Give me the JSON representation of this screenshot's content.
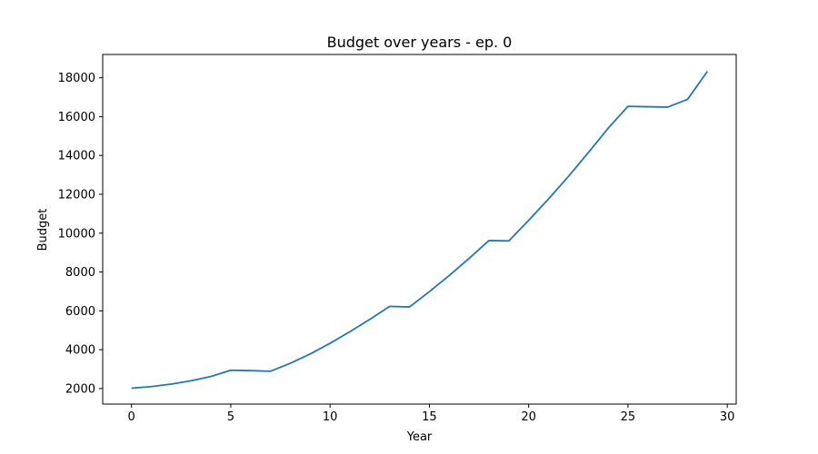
{
  "chart_data": {
    "type": "line",
    "title": "Budget over years - ep. 0",
    "xlabel": "Year",
    "ylabel": "Budget",
    "xlim": [
      -1.45,
      30.45
    ],
    "ylim": [
      1200,
      19200
    ],
    "xticks": [
      0,
      5,
      10,
      15,
      20,
      25,
      30
    ],
    "yticks": [
      2000,
      4000,
      6000,
      8000,
      10000,
      12000,
      14000,
      16000,
      18000
    ],
    "grid": false,
    "legend": "none",
    "series": [
      {
        "color": "#1f77b4",
        "x": [
          0,
          1,
          2,
          3,
          4,
          5,
          6,
          7,
          8,
          9,
          10,
          11,
          12,
          13,
          14,
          15,
          16,
          17,
          18,
          19,
          20,
          21,
          22,
          23,
          24,
          25,
          26,
          27,
          28,
          29
        ],
        "y": [
          2020,
          2100,
          2230,
          2400,
          2620,
          2940,
          2920,
          2890,
          3300,
          3780,
          4330,
          4930,
          5560,
          6230,
          6200,
          6990,
          7820,
          8700,
          9620,
          9600,
          10660,
          11760,
          12920,
          14140,
          15400,
          16530,
          16510,
          16490,
          16890,
          18330
        ]
      }
    ]
  }
}
